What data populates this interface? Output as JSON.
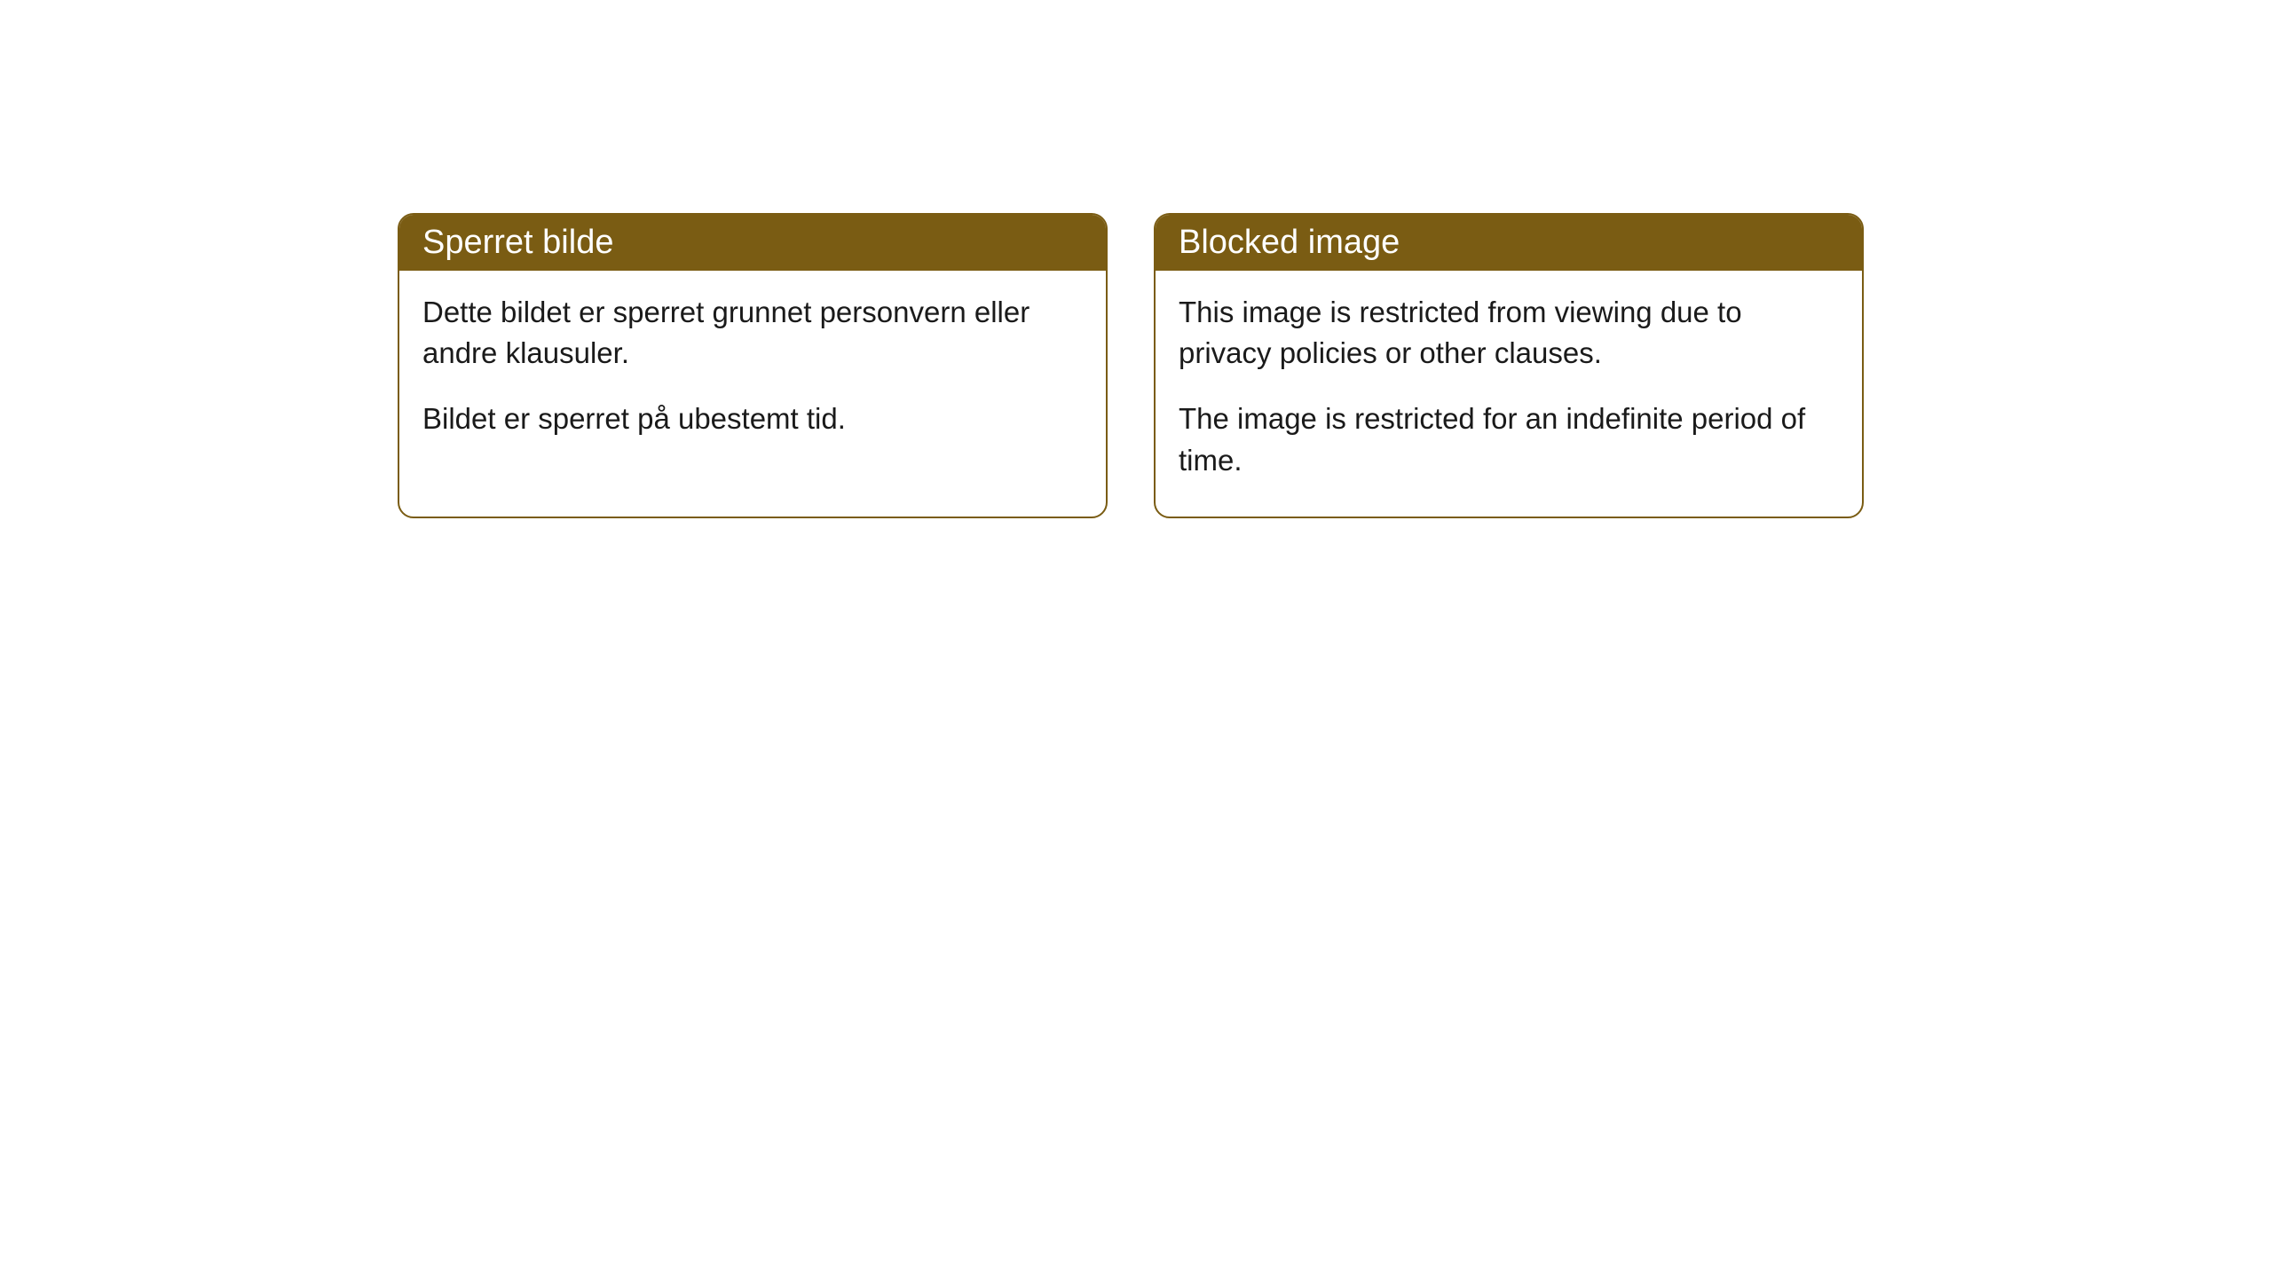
{
  "cards": [
    {
      "title": "Sperret bilde",
      "paragraph1": "Dette bildet er sperret grunnet personvern eller andre klausuler.",
      "paragraph2": "Bildet er sperret på ubestemt tid."
    },
    {
      "title": "Blocked image",
      "paragraph1": "This image is restricted from viewing due to privacy policies or other clauses.",
      "paragraph2": "The image is restricted for an indefinite period of time."
    }
  ],
  "styling": {
    "header_background": "#7a5c13",
    "header_text_color": "#ffffff",
    "border_color": "#7a5c13",
    "body_background": "#ffffff",
    "body_text_color": "#1a1a1a",
    "border_radius": 18,
    "header_font_size": 38,
    "body_font_size": 33
  }
}
